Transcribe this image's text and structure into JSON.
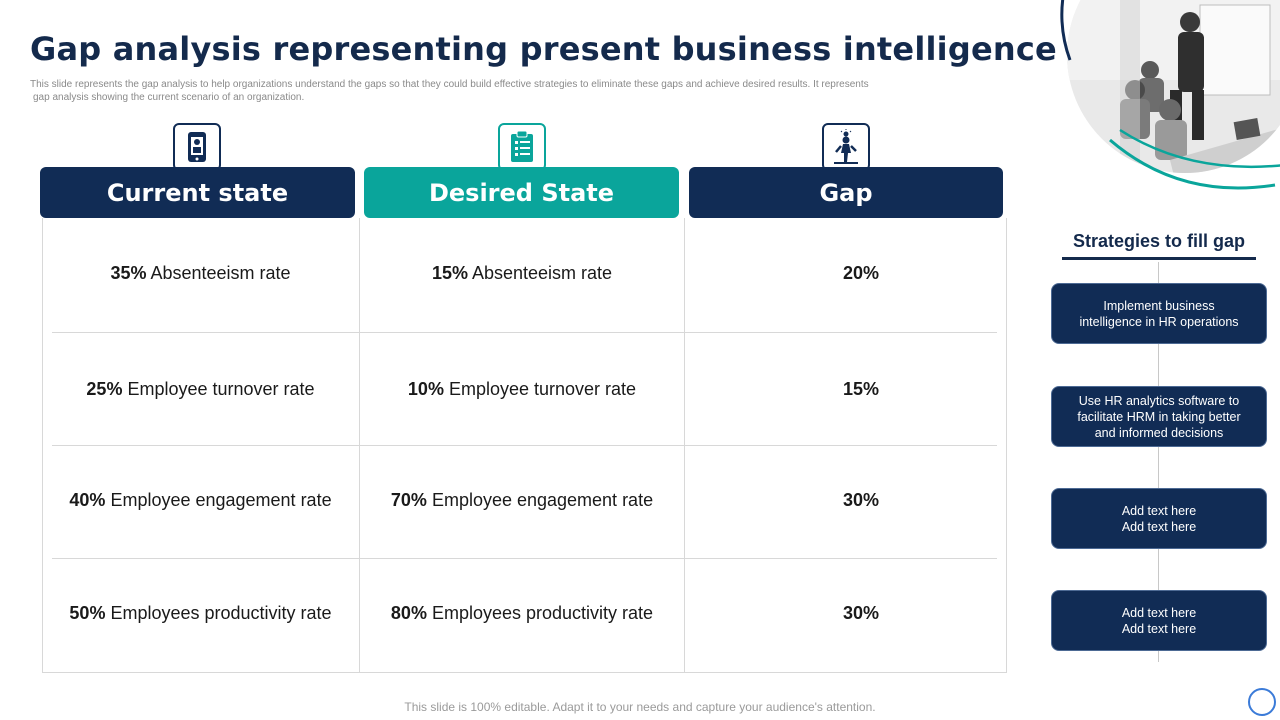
{
  "title": "Gap analysis representing present business intelligence scenario",
  "subtitle_line1": "This slide represents the gap analysis to help organizations understand the gaps so that they could build effective strategies to eliminate these gaps and achieve desired results. It represents",
  "subtitle_line2": "gap analysis showing the current scenario of an organization.",
  "columns": [
    {
      "label": "Current state",
      "icon": "mobile-device-icon",
      "color": "#112c55"
    },
    {
      "label": "Desired State",
      "icon": "clipboard-list-icon",
      "color": "#0aa59b"
    },
    {
      "label": "Gap",
      "icon": "person-walking-idea-icon",
      "color": "#112c55"
    }
  ],
  "rows": [
    {
      "current_value": "35%",
      "current_text": "Absenteeism rate",
      "desired_value": "15%",
      "desired_text": "Absenteeism rate",
      "gap": "20%"
    },
    {
      "current_value": "25%",
      "current_text": "Employee turnover rate",
      "desired_value": "10%",
      "desired_text": "Employee turnover rate",
      "gap": "15%"
    },
    {
      "current_value": "40%",
      "current_text": "Employee engagement rate",
      "desired_value": "70%",
      "desired_text": "Employee engagement rate",
      "gap": "30%"
    },
    {
      "current_value": "50%",
      "current_text": "Employees productivity rate",
      "desired_value": "80%",
      "desired_text": "Employees productivity rate",
      "gap": "30%"
    }
  ],
  "strategies": {
    "title": "Strategies to fill gap",
    "items": [
      {
        "line1": "Implement business",
        "line2": "intelligence in HR operations",
        "line3": ""
      },
      {
        "line1": "Use HR analytics software to",
        "line2": "facilitate HRM in taking better",
        "line3": "and informed decisions"
      },
      {
        "line1": "Add text here",
        "line2": "Add text here",
        "line3": ""
      },
      {
        "line1": "Add text here",
        "line2": "Add text here",
        "line3": ""
      }
    ]
  },
  "footer": "This slide is 100% editable. Adapt it to your needs and capture your audience's attention.",
  "colors": {
    "navy": "#112c55",
    "teal": "#0aa59b"
  }
}
